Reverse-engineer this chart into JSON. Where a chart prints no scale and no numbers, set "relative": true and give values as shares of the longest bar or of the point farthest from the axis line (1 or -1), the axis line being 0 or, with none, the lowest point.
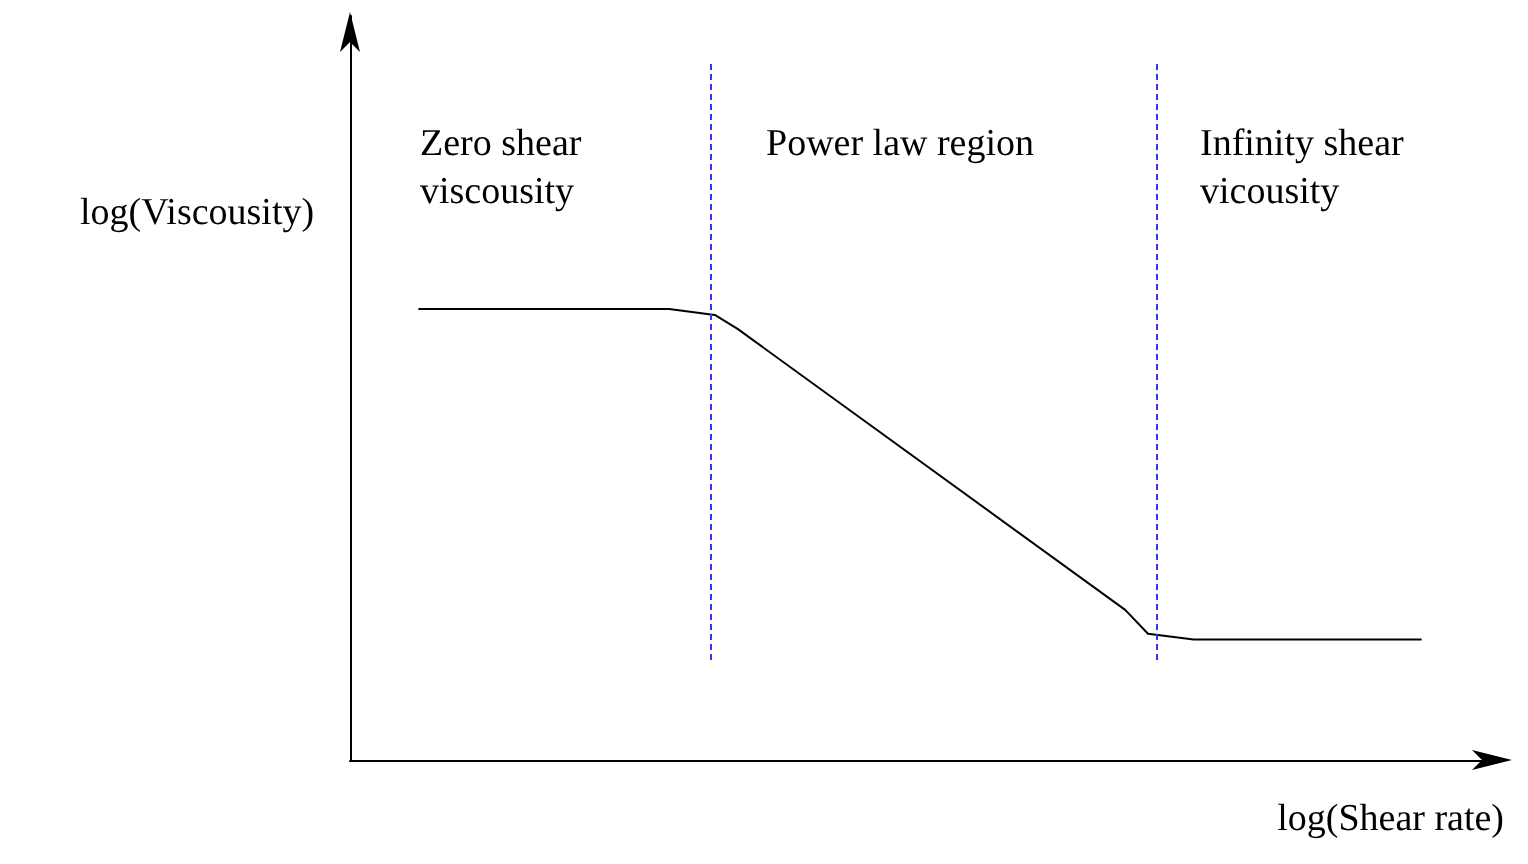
{
  "chart_data": {
    "type": "line",
    "relative": true,
    "xlabel": "log(Shear rate)",
    "ylabel": "log(Viscousity)",
    "marker": "none",
    "line_style": "solid",
    "categories": [
      null,
      null,
      null,
      null,
      null,
      null,
      null,
      null,
      null,
      null,
      null,
      null,
      null,
      null,
      null,
      null,
      null,
      null,
      null,
      null,
      null,
      null,
      null,
      null,
      null,
      null,
      null,
      null,
      null,
      null,
      null,
      null,
      null,
      null,
      null,
      null,
      null,
      null,
      null,
      null,
      null,
      null,
      null,
      null,
      null,
      null,
      null,
      null,
      null,
      null,
      null
    ],
    "series": [
      {
        "color": "#000000",
        "values": [
          null,
          null,
          null,
          1,
          null,
          null,
          null,
          null,
          null,
          null,
          null,
          null,
          null,
          null,
          1,
          null,
          0.987,
          0.956,
          null,
          null,
          null,
          null,
          null,
          null,
          null,
          null,
          null,
          null,
          null,
          null,
          null,
          null,
          null,
          null,
          0.333,
          0.28,
          null,
          0.267,
          null,
          null,
          null,
          null,
          null,
          null,
          null,
          null,
          null,
          0.267,
          null,
          null,
          null
        ]
      }
    ],
    "annotations": [
      "Zero shear viscousity",
      "Power law region",
      "Infinity shear vicousity"
    ]
  }
}
